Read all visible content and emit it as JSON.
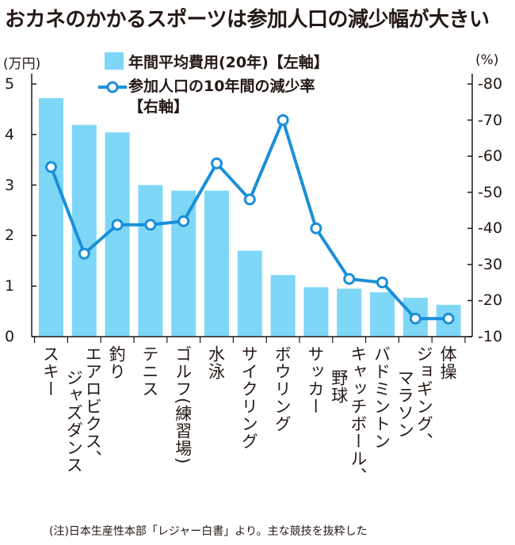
{
  "title": "おカネのかかるスポーツは参加人口の減少幅が大きい",
  "note": "(注)日本生産性本部「レジャー白書」より。主な競技を抜粋した",
  "colors": {
    "bar": "#7fd7f7",
    "line": "#1a8fd8",
    "axis": "#231815",
    "text": "#231815"
  },
  "chart_data": {
    "type": "bar",
    "categories": [
      "スキー",
      "エアロビクス、ジャズダンス",
      "釣り",
      "テニス",
      "ゴルフ(練習場)",
      "水泳",
      "サイクリング",
      "ボウリング",
      "サッカー",
      "キャッチボール、野球",
      "バドミントン",
      "ジョギング、マラソン",
      "体操"
    ],
    "series": [
      {
        "name": "年間平均費用(20年)【左軸】",
        "type": "bar",
        "axis": "left",
        "values": [
          4.72,
          4.19,
          4.04,
          3.0,
          2.89,
          2.89,
          1.7,
          1.22,
          0.98,
          0.95,
          0.88,
          0.77,
          0.63
        ]
      },
      {
        "name": "参加人口の10年間の減少率【右軸】",
        "type": "line",
        "axis": "right",
        "values": [
          -57,
          -33,
          -41,
          -41,
          -42,
          -58,
          -48,
          -70,
          -40,
          -26,
          -25,
          -15,
          -15
        ]
      }
    ],
    "left_axis": {
      "unit": "(万円)",
      "min": 0,
      "max": 5,
      "ticks": [
        "0",
        "1",
        "2",
        "3",
        "4",
        "5"
      ]
    },
    "right_axis": {
      "unit": "(%)",
      "min": -10,
      "max": -80,
      "ticks": [
        "-10",
        "-20",
        "-30",
        "-40",
        "-50",
        "-60",
        "-70",
        "-80"
      ]
    }
  }
}
